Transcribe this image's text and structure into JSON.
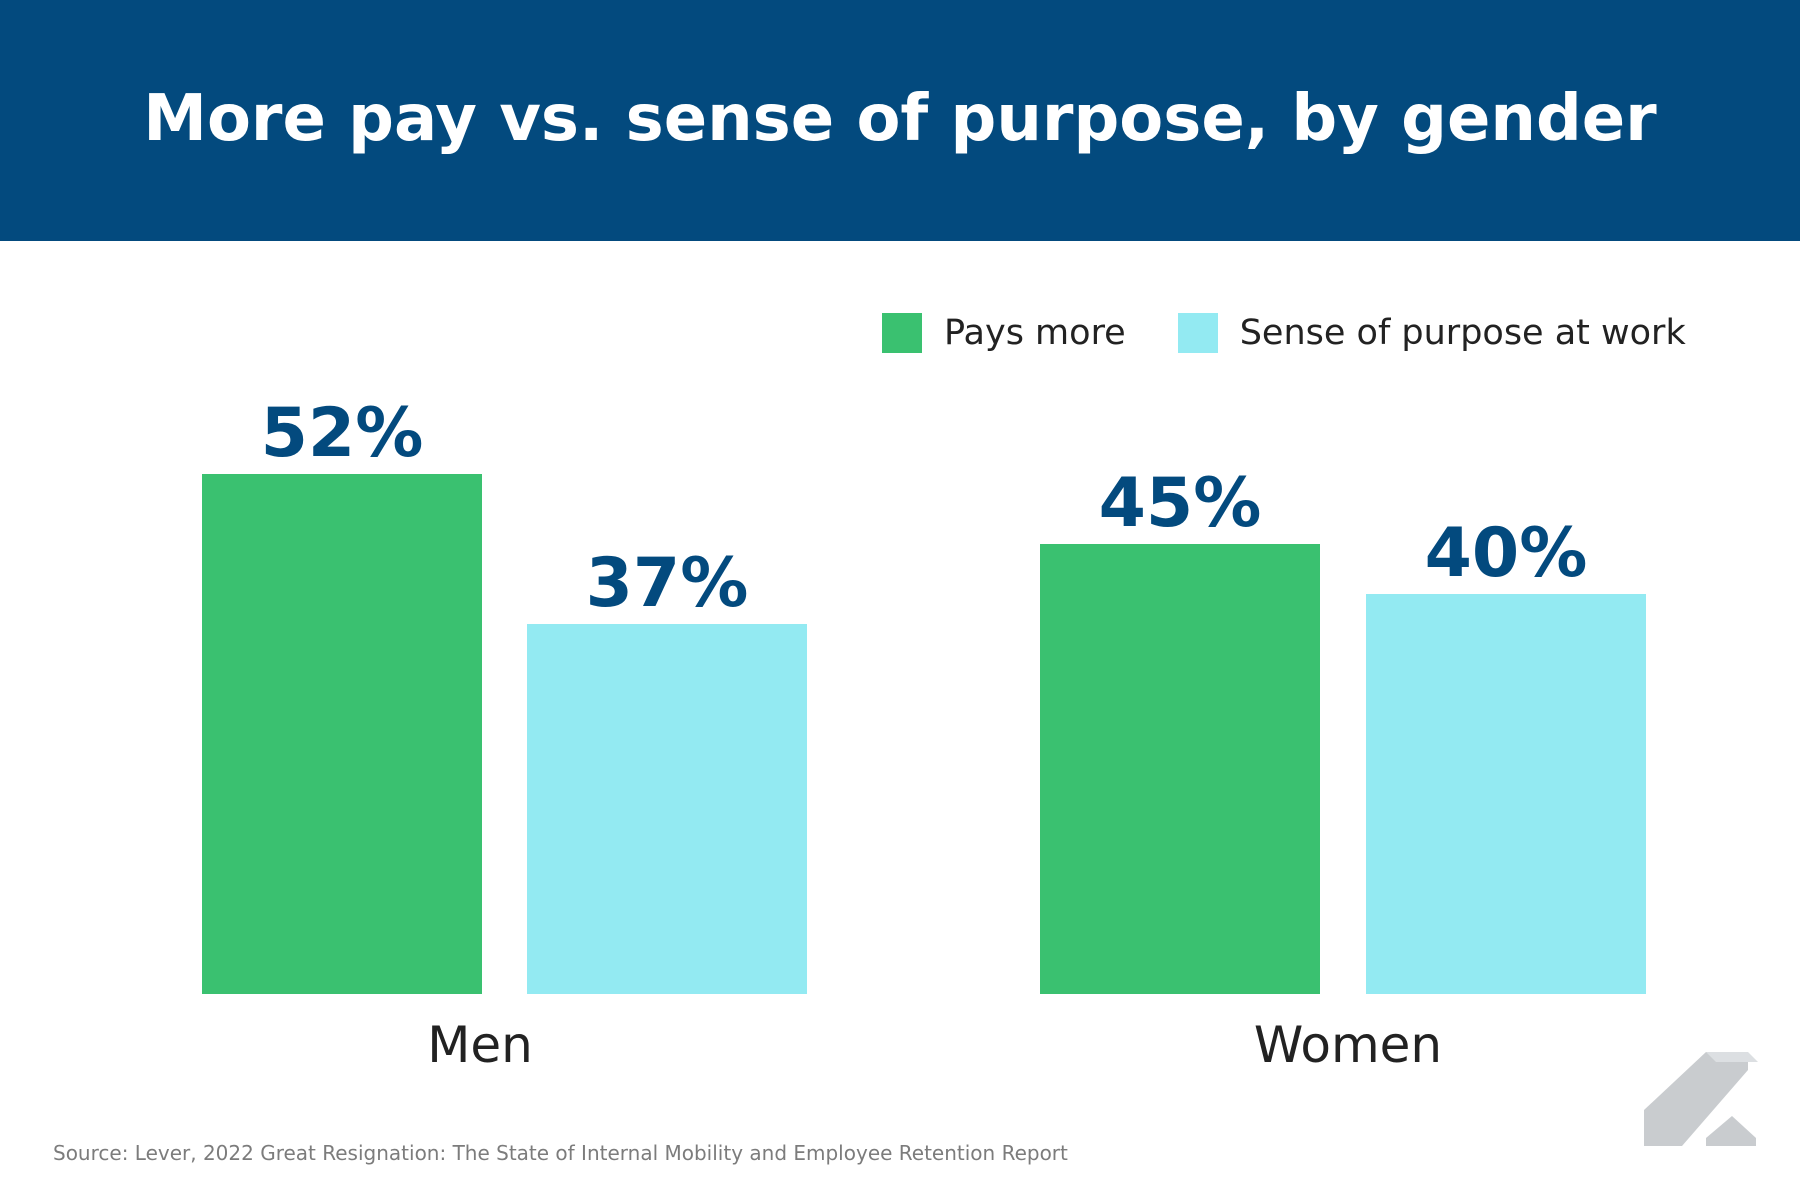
{
  "chart_data": {
    "type": "bar",
    "title": "More pay vs. sense of purpose, by gender",
    "categories": [
      "Men",
      "Women"
    ],
    "series": [
      {
        "name": "Pays more",
        "color": "#3ac170",
        "values": [
          52,
          45
        ]
      },
      {
        "name": "Sense of purpose at work",
        "color": "#93eaf2",
        "values": [
          37,
          40
        ]
      }
    ],
    "value_labels": [
      [
        "52%",
        "45%"
      ],
      [
        "37%",
        "40%"
      ]
    ],
    "value_label_color": "#034a7e",
    "xlabel": "",
    "ylabel": "",
    "ylim": [
      0,
      100
    ],
    "grid": false,
    "legend_position": "top-right",
    "source": "Source: Lever, 2022 Great Resignation: The State of Internal Mobility and Employee Retention Report"
  },
  "colors": {
    "header_bg": "#034a7e",
    "category_text": "#222222",
    "logo": "#c9cccf"
  },
  "icons": {
    "logo": "lever-logo-icon"
  }
}
